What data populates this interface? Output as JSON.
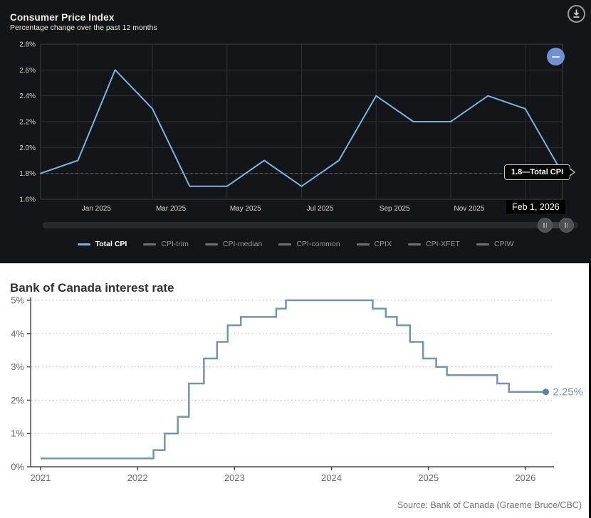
{
  "cpi_panel": {
    "title": "Consumer Price Index",
    "subtitle": "Percentage change over the past 12 months",
    "tooltip_text": "1.8—Total CPI",
    "selected_date_label": "Feb 1, 2026",
    "legend": [
      {
        "label": "Total CPI",
        "active": true
      },
      {
        "label": "CPI-trim",
        "active": false
      },
      {
        "label": "CPI-median",
        "active": false
      },
      {
        "label": "CPI-common",
        "active": false
      },
      {
        "label": "CPIX",
        "active": false
      },
      {
        "label": "CPI-XFET",
        "active": false
      },
      {
        "label": "CPIW",
        "active": false
      }
    ],
    "icons": [
      "download-icon",
      "minus-icon",
      "pause-handle-icon"
    ],
    "colors": {
      "line": "#7ab3dd",
      "zoom_button": "#7191d3",
      "panel_bg": "#141519"
    }
  },
  "boc_panel": {
    "title": "Bank of Canada interest rate",
    "source": "Source: Bank of Canada (Graeme Bruce/CBC)",
    "end_label": "2.25%",
    "colors": {
      "line": "#7496ad",
      "panel_bg": "#ffffff"
    }
  },
  "chart_data": [
    {
      "type": "line",
      "title": "Consumer Price Index",
      "subtitle": "Percentage change over the past 12 months",
      "series_name": "Total CPI",
      "x": [
        "Dec 2024",
        "Jan 2025",
        "Feb 2025",
        "Mar 2025",
        "Apr 2025",
        "May 2025",
        "Jun 2025",
        "Jul 2025",
        "Aug 2025",
        "Sep 2025",
        "Oct 2025",
        "Nov 2025",
        "Dec 2025",
        "Jan 2026",
        "Feb 2026"
      ],
      "values": [
        1.8,
        1.9,
        2.6,
        2.3,
        1.7,
        1.7,
        1.9,
        1.7,
        1.9,
        2.4,
        2.2,
        2.2,
        2.4,
        2.3,
        1.8
      ],
      "y_ticks": [
        "2.8%",
        "2.6%",
        "2.4%",
        "2.2%",
        "2.0%",
        "1.8%",
        "1.6%"
      ],
      "ylim": [
        1.6,
        2.8
      ],
      "hover_value": 1.8,
      "hover_x": "Feb 1, 2026",
      "grid": true,
      "legend_position": "bottom",
      "other_series_names": [
        "CPI-trim",
        "CPI-median",
        "CPI-common",
        "CPIX",
        "CPI-XFET",
        "CPIW"
      ]
    },
    {
      "type": "line",
      "subtype": "step",
      "title": "Bank of Canada interest rate",
      "steps_year_rate": [
        [
          2021.0,
          0.25
        ],
        [
          2022.165,
          0.5
        ],
        [
          2022.28,
          1.0
        ],
        [
          2022.415,
          1.5
        ],
        [
          2022.53,
          2.5
        ],
        [
          2022.685,
          3.25
        ],
        [
          2022.82,
          3.75
        ],
        [
          2022.93,
          4.25
        ],
        [
          2023.065,
          4.5
        ],
        [
          2023.43,
          4.75
        ],
        [
          2023.53,
          5.0
        ],
        [
          2024.425,
          4.75
        ],
        [
          2024.56,
          4.5
        ],
        [
          2024.675,
          4.25
        ],
        [
          2024.81,
          3.75
        ],
        [
          2024.945,
          3.25
        ],
        [
          2025.08,
          3.0
        ],
        [
          2025.19,
          2.75
        ],
        [
          2025.71,
          2.5
        ],
        [
          2025.83,
          2.25
        ]
      ],
      "end_year": 2026.21,
      "end_value": 2.25,
      "end_label": "2.25%",
      "x_ticks": [
        "2021",
        "2022",
        "2023",
        "2024",
        "2025",
        "2026"
      ],
      "x_tick_years": [
        2021,
        2022,
        2023,
        2024,
        2025,
        2026
      ],
      "y_ticks": [
        "0%",
        "1%",
        "2%",
        "3%",
        "4%",
        "5%"
      ],
      "ylim": [
        0,
        5
      ],
      "grid": true,
      "source": "Source: Bank of Canada (Graeme Bruce/CBC)"
    }
  ]
}
